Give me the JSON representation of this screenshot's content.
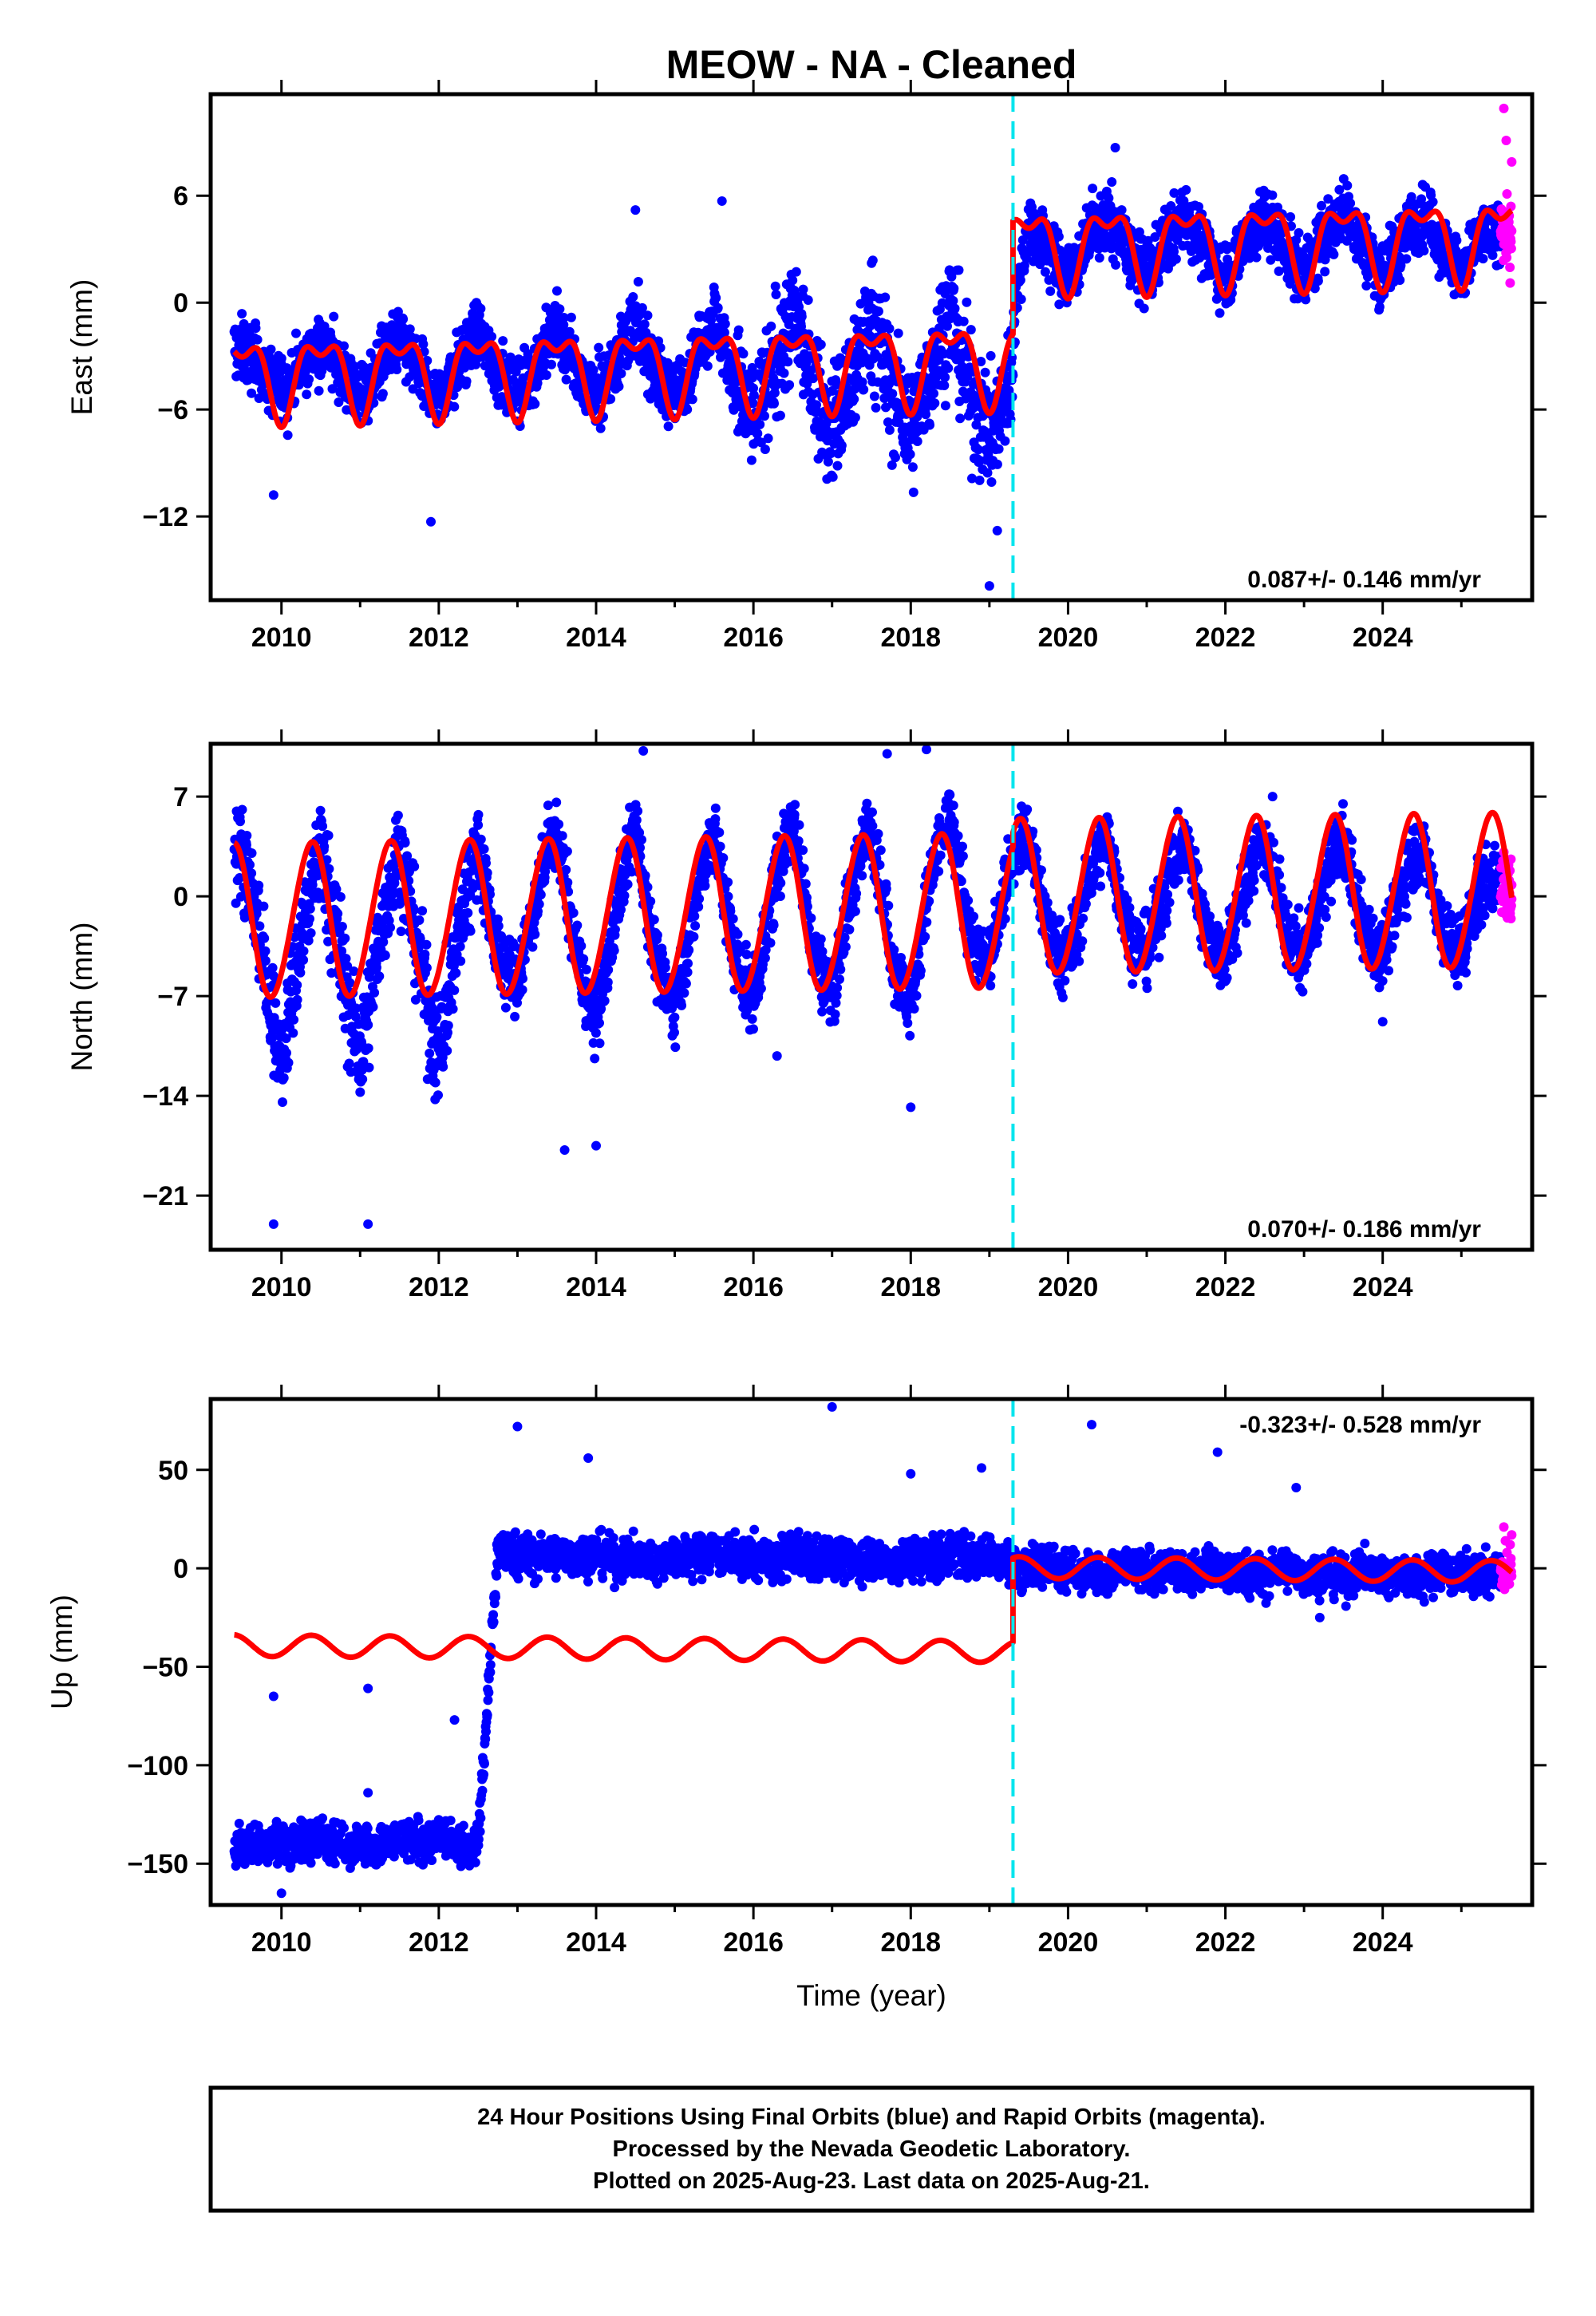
{
  "title": "MEOW  - NA - Cleaned",
  "xlabel": "Time (year)",
  "footnote": [
    "24 Hour Positions Using Final Orbits (blue) and Rapid Orbits (magenta).",
    "Processed by the Nevada Geodetic Laboratory.",
    "Plotted on 2025-Aug-23. Last data on 2025-Aug-21."
  ],
  "colors": {
    "final_orbits": "#0000ff",
    "rapid_orbits": "#ff00ff",
    "model": "#ff0000",
    "equipment_change": "#00e5ee",
    "frame": "#000000"
  },
  "chart_data": [
    {
      "type": "scatter",
      "ylabel": "East (mm)",
      "rate_label": "0.087+/- 0.146 mm/yr",
      "rate_placement": "bottom-right",
      "xlim": [
        2009.1,
        2025.9
      ],
      "ylim": [
        -16.7,
        11.7
      ],
      "xticks": [
        2010,
        2012,
        2014,
        2016,
        2018,
        2020,
        2022,
        2024
      ],
      "yticks": [
        -12,
        -6,
        0,
        6
      ],
      "y_tick_labels": [
        "−12",
        "−6",
        "0",
        "6"
      ],
      "grid": false,
      "data_start": 2009.4,
      "data_end": 2025.64,
      "rapid_start": 2025.5,
      "break_year": 2019.3,
      "final_orbit_points": [
        {
          "x": 2009.5,
          "y": -2.5
        },
        {
          "x": 2009.75,
          "y": -4.2
        },
        {
          "x": 2010.0,
          "y": -3.5
        },
        {
          "x": 2010.25,
          "y": -4.0
        },
        {
          "x": 2010.5,
          "y": -1.8
        },
        {
          "x": 2010.75,
          "y": -4.5
        },
        {
          "x": 2011.0,
          "y": -4.0
        },
        {
          "x": 2011.25,
          "y": -4.2
        },
        {
          "x": 2011.5,
          "y": -1.5
        },
        {
          "x": 2011.75,
          "y": -4.8
        },
        {
          "x": 2012.0,
          "y": -4.2
        },
        {
          "x": 2012.25,
          "y": -3.8
        },
        {
          "x": 2012.5,
          "y": -1.0
        },
        {
          "x": 2012.75,
          "y": -4.6
        },
        {
          "x": 2013.0,
          "y": -3.8
        },
        {
          "x": 2013.25,
          "y": -4.0
        },
        {
          "x": 2013.5,
          "y": -0.5
        },
        {
          "x": 2013.75,
          "y": -4.8
        },
        {
          "x": 2014.0,
          "y": -4.0
        },
        {
          "x": 2014.25,
          "y": -3.9
        },
        {
          "x": 2014.5,
          "y": -0.2
        },
        {
          "x": 2014.75,
          "y": -4.9
        },
        {
          "x": 2015.0,
          "y": -4.2
        },
        {
          "x": 2015.25,
          "y": -4.0
        },
        {
          "x": 2015.5,
          "y": 0.5
        },
        {
          "x": 2015.75,
          "y": -5.5
        },
        {
          "x": 2016.0,
          "y": -6.5
        },
        {
          "x": 2016.25,
          "y": -5.0
        },
        {
          "x": 2016.5,
          "y": 0.3
        },
        {
          "x": 2016.75,
          "y": -5.8
        },
        {
          "x": 2017.0,
          "y": -7.0
        },
        {
          "x": 2017.25,
          "y": -5.5
        },
        {
          "x": 2017.5,
          "y": 0.2
        },
        {
          "x": 2017.75,
          "y": -6.0
        },
        {
          "x": 2018.0,
          "y": -7.5
        },
        {
          "x": 2018.25,
          "y": -4.5
        },
        {
          "x": 2018.5,
          "y": 0.5
        },
        {
          "x": 2018.75,
          "y": -6.5
        },
        {
          "x": 2019.0,
          "y": -8.0
        },
        {
          "x": 2019.25,
          "y": -6.0
        },
        {
          "x": 2019.5,
          "y": 4.5
        },
        {
          "x": 2019.75,
          "y": 2.0
        },
        {
          "x": 2020.0,
          "y": 2.5
        },
        {
          "x": 2020.25,
          "y": 3.0
        },
        {
          "x": 2020.5,
          "y": 5.0
        },
        {
          "x": 2020.75,
          "y": 2.2
        },
        {
          "x": 2021.0,
          "y": 2.5
        },
        {
          "x": 2021.25,
          "y": 2.8
        },
        {
          "x": 2021.5,
          "y": 5.2
        },
        {
          "x": 2021.75,
          "y": 2.0
        },
        {
          "x": 2022.0,
          "y": 2.4
        },
        {
          "x": 2022.25,
          "y": 3.0
        },
        {
          "x": 2022.5,
          "y": 5.0
        },
        {
          "x": 2022.75,
          "y": 2.3
        },
        {
          "x": 2023.0,
          "y": 2.6
        },
        {
          "x": 2023.25,
          "y": 3.0
        },
        {
          "x": 2023.5,
          "y": 5.3
        },
        {
          "x": 2023.75,
          "y": 2.4
        },
        {
          "x": 2024.0,
          "y": 2.5
        },
        {
          "x": 2024.25,
          "y": 2.9
        },
        {
          "x": 2024.5,
          "y": 5.0
        },
        {
          "x": 2024.75,
          "y": 2.5
        },
        {
          "x": 2025.0,
          "y": 2.7
        },
        {
          "x": 2025.25,
          "y": 3.1
        }
      ],
      "outliers": [
        {
          "x": 2009.9,
          "y": -10.8
        },
        {
          "x": 2011.9,
          "y": -12.3
        },
        {
          "x": 2019.0,
          "y": -15.9
        },
        {
          "x": 2019.1,
          "y": -12.8
        },
        {
          "x": 2020.6,
          "y": 8.7
        },
        {
          "x": 2014.5,
          "y": 5.2
        },
        {
          "x": 2015.6,
          "y": 5.7
        }
      ],
      "rapid_orbit_points": [
        {
          "x": 2025.54,
          "y": 10.9
        },
        {
          "x": 2025.57,
          "y": 9.1
        },
        {
          "x": 2025.58,
          "y": 6.1
        },
        {
          "x": 2025.6,
          "y": 4.8
        },
        {
          "x": 2025.61,
          "y": 3.1
        },
        {
          "x": 2025.62,
          "y": 1.1
        },
        {
          "x": 2025.63,
          "y": 5.4
        },
        {
          "x": 2025.64,
          "y": 7.9
        }
      ],
      "model": {
        "pre_break": {
          "offset": -3.35,
          "annual_amp": 2.0,
          "annual_phase": 0.5,
          "semi_amp": 1.0,
          "semi_phase": 0.5
        },
        "post_break": {
          "offset": 3.0,
          "annual_amp": 2.0,
          "annual_phase": 0.5,
          "semi_amp": 1.0,
          "semi_phase": 0.5
        },
        "trend_mm_per_yr": 0.087
      }
    },
    {
      "type": "scatter",
      "ylabel": "North (mm)",
      "rate_label": "0.070+/- 0.186 mm/yr",
      "rate_placement": "bottom-right",
      "xlim": [
        2009.1,
        2025.9
      ],
      "ylim": [
        -24.8,
        10.7
      ],
      "xticks": [
        2010,
        2012,
        2014,
        2016,
        2018,
        2020,
        2022,
        2024
      ],
      "yticks": [
        -21,
        -14,
        -7,
        0,
        7
      ],
      "y_tick_labels": [
        "−21",
        "−14",
        "−7",
        "0",
        "7"
      ],
      "grid": false,
      "data_start": 2009.4,
      "data_end": 2025.64,
      "rapid_start": 2025.5,
      "break_year": 2019.3,
      "final_orbit_points": [
        {
          "x": 2009.5,
          "y": 3.5
        },
        {
          "x": 2009.75,
          "y": -3.0
        },
        {
          "x": 2010.0,
          "y": -14.0
        },
        {
          "x": 2010.25,
          "y": -6.0
        },
        {
          "x": 2010.5,
          "y": 3.8
        },
        {
          "x": 2010.75,
          "y": -3.0
        },
        {
          "x": 2011.0,
          "y": -15.0
        },
        {
          "x": 2011.25,
          "y": -5.5
        },
        {
          "x": 2011.5,
          "y": 3.5
        },
        {
          "x": 2011.75,
          "y": -3.5
        },
        {
          "x": 2012.0,
          "y": -14.5
        },
        {
          "x": 2012.25,
          "y": -5.0
        },
        {
          "x": 2012.5,
          "y": 4.0
        },
        {
          "x": 2012.75,
          "y": -3.0
        },
        {
          "x": 2013.0,
          "y": -6.0
        },
        {
          "x": 2013.25,
          "y": -1.0
        },
        {
          "x": 2013.5,
          "y": 5.5
        },
        {
          "x": 2013.75,
          "y": -3.0
        },
        {
          "x": 2014.0,
          "y": -11.0
        },
        {
          "x": 2014.25,
          "y": -3.0
        },
        {
          "x": 2014.5,
          "y": 6.0
        },
        {
          "x": 2014.75,
          "y": -3.5
        },
        {
          "x": 2015.0,
          "y": -9.0
        },
        {
          "x": 2015.25,
          "y": -2.5
        },
        {
          "x": 2015.5,
          "y": 5.5
        },
        {
          "x": 2015.75,
          "y": -3.0
        },
        {
          "x": 2016.0,
          "y": -8.0
        },
        {
          "x": 2016.25,
          "y": -1.0
        },
        {
          "x": 2016.5,
          "y": 6.5
        },
        {
          "x": 2016.75,
          "y": -2.5
        },
        {
          "x": 2017.0,
          "y": -7.5
        },
        {
          "x": 2017.25,
          "y": -0.5
        },
        {
          "x": 2017.5,
          "y": 6.0
        },
        {
          "x": 2017.75,
          "y": -3.0
        },
        {
          "x": 2018.0,
          "y": -9.0
        },
        {
          "x": 2018.25,
          "y": 0.5
        },
        {
          "x": 2018.5,
          "y": 6.5
        },
        {
          "x": 2018.75,
          "y": -1.0
        },
        {
          "x": 2019.0,
          "y": -5.0
        },
        {
          "x": 2019.25,
          "y": 2.0
        },
        {
          "x": 2019.5,
          "y": 4.0
        },
        {
          "x": 2019.75,
          "y": -1.5
        },
        {
          "x": 2020.0,
          "y": -4.5
        },
        {
          "x": 2020.25,
          "y": -1.0
        },
        {
          "x": 2020.5,
          "y": 4.0
        },
        {
          "x": 2020.75,
          "y": -1.0
        },
        {
          "x": 2021.0,
          "y": -4.0
        },
        {
          "x": 2021.25,
          "y": -1.0
        },
        {
          "x": 2021.5,
          "y": 3.5
        },
        {
          "x": 2021.75,
          "y": -1.0
        },
        {
          "x": 2022.0,
          "y": -4.5
        },
        {
          "x": 2022.25,
          "y": -1.0
        },
        {
          "x": 2022.5,
          "y": 3.5
        },
        {
          "x": 2022.75,
          "y": -1.0
        },
        {
          "x": 2023.0,
          "y": -4.5
        },
        {
          "x": 2023.25,
          "y": -1.0
        },
        {
          "x": 2023.5,
          "y": 3.5
        },
        {
          "x": 2023.75,
          "y": -1.0
        },
        {
          "x": 2024.0,
          "y": -4.0
        },
        {
          "x": 2024.25,
          "y": -1.0
        },
        {
          "x": 2024.5,
          "y": 3.0
        },
        {
          "x": 2024.75,
          "y": -1.0
        },
        {
          "x": 2025.0,
          "y": -4.0
        },
        {
          "x": 2025.25,
          "y": -1.0
        }
      ],
      "outliers": [
        {
          "x": 2009.9,
          "y": -23.0
        },
        {
          "x": 2011.1,
          "y": -23.0
        },
        {
          "x": 2013.6,
          "y": -17.8
        },
        {
          "x": 2014.0,
          "y": -17.5
        },
        {
          "x": 2014.6,
          "y": 10.2
        },
        {
          "x": 2017.7,
          "y": 10.0
        },
        {
          "x": 2018.2,
          "y": 10.3
        },
        {
          "x": 2016.3,
          "y": -11.2
        },
        {
          "x": 2018.0,
          "y": -14.8
        },
        {
          "x": 2024.0,
          "y": -8.8
        },
        {
          "x": 2022.6,
          "y": 7.0
        }
      ],
      "rapid_orbit_points": [
        {
          "x": 2025.54,
          "y": 3.1
        },
        {
          "x": 2025.56,
          "y": 1.2
        },
        {
          "x": 2025.58,
          "y": -0.8
        },
        {
          "x": 2025.6,
          "y": 2.2
        },
        {
          "x": 2025.61,
          "y": 0.2
        },
        {
          "x": 2025.62,
          "y": -1.2
        },
        {
          "x": 2025.63,
          "y": 2.6
        },
        {
          "x": 2025.64,
          "y": 0.8
        }
      ],
      "model": {
        "pre_break": {
          "offset": -1.2,
          "annual_amp": 5.4,
          "annual_phase": 0.38,
          "semi_amp": 0.3,
          "semi_phase": 0.2
        },
        "post_break": {
          "offset": -0.2,
          "annual_amp": 5.4,
          "annual_phase": 0.38,
          "semi_amp": 0.3,
          "semi_phase": 0.2
        },
        "trend_mm_per_yr": 0.07
      }
    },
    {
      "type": "scatter",
      "ylabel": "Up (mm)",
      "rate_label": "-0.323+/- 0.528 mm/yr",
      "rate_placement": "top-right",
      "xlim": [
        2009.1,
        2025.9
      ],
      "ylim": [
        -171,
        86
      ],
      "xticks": [
        2010,
        2012,
        2014,
        2016,
        2018,
        2020,
        2022,
        2024
      ],
      "yticks": [
        -150,
        -100,
        -50,
        0,
        50
      ],
      "y_tick_labels": [
        "−150",
        "−100",
        "−50",
        "0",
        "50"
      ],
      "grid": false,
      "data_start": 2009.4,
      "data_end": 2025.64,
      "rapid_start": 2025.5,
      "break_year": 2019.3,
      "final_orbit_points": [
        {
          "x": 2009.5,
          "y": -140
        },
        {
          "x": 2009.75,
          "y": -142
        },
        {
          "x": 2010.0,
          "y": -138
        },
        {
          "x": 2010.25,
          "y": -140
        },
        {
          "x": 2010.5,
          "y": -136
        },
        {
          "x": 2010.75,
          "y": -141
        },
        {
          "x": 2011.0,
          "y": -139
        },
        {
          "x": 2011.25,
          "y": -142
        },
        {
          "x": 2011.5,
          "y": -138
        },
        {
          "x": 2011.75,
          "y": -140
        },
        {
          "x": 2012.0,
          "y": -137
        },
        {
          "x": 2012.25,
          "y": -141
        },
        {
          "x": 2012.5,
          "y": -140
        },
        {
          "x": 2012.75,
          "y": 10
        },
        {
          "x": 2013.0,
          "y": 8
        },
        {
          "x": 2013.25,
          "y": 5
        },
        {
          "x": 2013.5,
          "y": 7
        },
        {
          "x": 2013.75,
          "y": 6
        },
        {
          "x": 2014.0,
          "y": 8
        },
        {
          "x": 2014.25,
          "y": 4
        },
        {
          "x": 2014.5,
          "y": 6
        },
        {
          "x": 2014.75,
          "y": 3
        },
        {
          "x": 2015.0,
          "y": 7
        },
        {
          "x": 2015.25,
          "y": 5
        },
        {
          "x": 2015.5,
          "y": 9
        },
        {
          "x": 2015.75,
          "y": 4
        },
        {
          "x": 2016.0,
          "y": 6
        },
        {
          "x": 2016.25,
          "y": 3
        },
        {
          "x": 2016.5,
          "y": 8
        },
        {
          "x": 2016.75,
          "y": 4
        },
        {
          "x": 2017.0,
          "y": 7
        },
        {
          "x": 2017.25,
          "y": 3
        },
        {
          "x": 2017.5,
          "y": 6
        },
        {
          "x": 2017.75,
          "y": 2
        },
        {
          "x": 2018.0,
          "y": 5
        },
        {
          "x": 2018.25,
          "y": 4
        },
        {
          "x": 2018.5,
          "y": 8
        },
        {
          "x": 2018.75,
          "y": 6
        },
        {
          "x": 2019.0,
          "y": 5
        },
        {
          "x": 2019.25,
          "y": 3
        },
        {
          "x": 2019.5,
          "y": 0
        },
        {
          "x": 2019.75,
          "y": 3
        },
        {
          "x": 2020.0,
          "y": -2
        },
        {
          "x": 2020.25,
          "y": 0
        },
        {
          "x": 2020.5,
          "y": -4
        },
        {
          "x": 2020.75,
          "y": 1
        },
        {
          "x": 2021.0,
          "y": -3
        },
        {
          "x": 2021.25,
          "y": 0
        },
        {
          "x": 2021.5,
          "y": -5
        },
        {
          "x": 2021.75,
          "y": 2
        },
        {
          "x": 2022.0,
          "y": -3
        },
        {
          "x": 2022.25,
          "y": -1
        },
        {
          "x": 2022.5,
          "y": -5
        },
        {
          "x": 2022.75,
          "y": 1
        },
        {
          "x": 2023.0,
          "y": -4
        },
        {
          "x": 2023.25,
          "y": -2
        },
        {
          "x": 2023.5,
          "y": -6
        },
        {
          "x": 2023.75,
          "y": 0
        },
        {
          "x": 2024.0,
          "y": -4
        },
        {
          "x": 2024.25,
          "y": -2
        },
        {
          "x": 2024.5,
          "y": -6
        },
        {
          "x": 2024.75,
          "y": 0
        },
        {
          "x": 2025.0,
          "y": -5
        },
        {
          "x": 2025.25,
          "y": -3
        }
      ],
      "outliers": [
        {
          "x": 2009.9,
          "y": -65
        },
        {
          "x": 2011.1,
          "y": -61
        },
        {
          "x": 2012.2,
          "y": -77
        },
        {
          "x": 2013.0,
          "y": 72
        },
        {
          "x": 2013.9,
          "y": 56
        },
        {
          "x": 2017.0,
          "y": 82
        },
        {
          "x": 2018.0,
          "y": 48
        },
        {
          "x": 2018.9,
          "y": 51
        },
        {
          "x": 2020.3,
          "y": 73
        },
        {
          "x": 2021.9,
          "y": 59
        },
        {
          "x": 2022.9,
          "y": 41
        },
        {
          "x": 2023.2,
          "y": -25
        },
        {
          "x": 2010.0,
          "y": -165
        },
        {
          "x": 2011.1,
          "y": -114
        }
      ],
      "rapid_orbit_points": [
        {
          "x": 2025.54,
          "y": 21
        },
        {
          "x": 2025.56,
          "y": 14
        },
        {
          "x": 2025.58,
          "y": 8
        },
        {
          "x": 2025.59,
          "y": 2
        },
        {
          "x": 2025.6,
          "y": -4
        },
        {
          "x": 2025.61,
          "y": -8
        },
        {
          "x": 2025.62,
          "y": 12
        },
        {
          "x": 2025.63,
          "y": 5
        },
        {
          "x": 2025.64,
          "y": 17
        }
      ],
      "model": {
        "pre_break": {
          "offset": -41.8,
          "annual_amp": 5.5,
          "annual_phase": 0.38,
          "semi_amp": 0,
          "semi_phase": 0
        },
        "post_break": {
          "offset": 1.0,
          "annual_amp": 5.5,
          "annual_phase": 0.38,
          "semi_amp": 0,
          "semi_phase": 0
        },
        "trend_mm_per_yr": -0.323
      }
    }
  ]
}
